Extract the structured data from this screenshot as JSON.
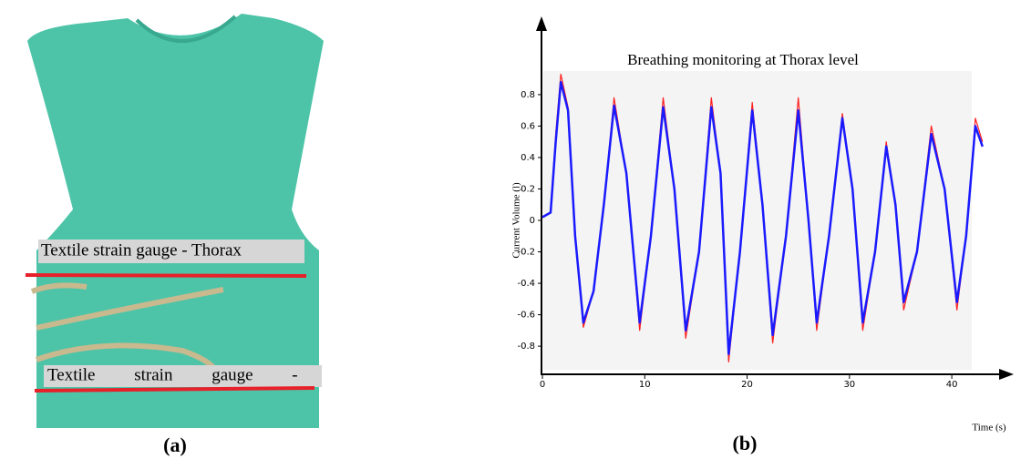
{
  "chart_data": {
    "type": "line",
    "title": "Breathing monitoring at Thorax level",
    "xlabel": "Time (s)",
    "ylabel": "Current Volume (l)",
    "x": [
      0,
      0.8,
      1.3,
      1.8,
      2.5,
      3.2,
      4.0,
      5.0,
      6.0,
      7.0,
      8.2,
      9.5,
      10.6,
      11.8,
      12.9,
      14.0,
      15.3,
      16.5,
      17.4,
      18.2,
      19.3,
      20.5,
      21.5,
      22.5,
      23.8,
      25.0,
      26.0,
      26.8,
      28.0,
      29.3,
      30.3,
      31.3,
      32.5,
      33.6,
      34.5,
      35.3,
      36.6,
      38.0,
      39.3,
      40.5,
      41.4,
      42.3,
      43.0
    ],
    "series": [
      {
        "color": "#ff2020",
        "values": [
          0.02,
          0.05,
          0.55,
          0.93,
          0.72,
          -0.1,
          -0.68,
          -0.45,
          0.1,
          0.78,
          0.3,
          -0.7,
          -0.1,
          0.78,
          0.2,
          -0.75,
          -0.2,
          0.78,
          0.3,
          -0.9,
          -0.2,
          0.75,
          0.1,
          -0.78,
          -0.1,
          0.78,
          0.0,
          -0.7,
          -0.1,
          0.68,
          0.2,
          -0.7,
          -0.2,
          0.5,
          0.1,
          -0.57,
          -0.2,
          0.6,
          0.2,
          -0.57,
          -0.1,
          0.65,
          0.5
        ]
      },
      {
        "color": "#1a1aff",
        "values": [
          0.02,
          0.05,
          0.5,
          0.88,
          0.7,
          -0.1,
          -0.65,
          -0.45,
          0.1,
          0.73,
          0.3,
          -0.65,
          -0.1,
          0.72,
          0.2,
          -0.7,
          -0.2,
          0.72,
          0.3,
          -0.85,
          -0.2,
          0.7,
          0.1,
          -0.73,
          -0.1,
          0.7,
          0.0,
          -0.65,
          -0.1,
          0.65,
          0.2,
          -0.65,
          -0.2,
          0.47,
          0.1,
          -0.52,
          -0.2,
          0.55,
          0.2,
          -0.52,
          -0.1,
          0.6,
          0.47
        ]
      }
    ],
    "xlim": [
      0,
      44
    ],
    "ylim": [
      -0.95,
      0.95
    ],
    "xticks": [
      0,
      10,
      20,
      30,
      40
    ],
    "yticks": [
      -0.8,
      -0.6,
      -0.4,
      -0.2,
      0,
      0.2,
      0.4,
      0.6,
      0.8
    ]
  },
  "photo": {
    "label_top": "Textile strain gauge - Thorax",
    "label_bottom": "Textile strain gauge -"
  },
  "panels": [
    "(a)",
    "(b)"
  ]
}
